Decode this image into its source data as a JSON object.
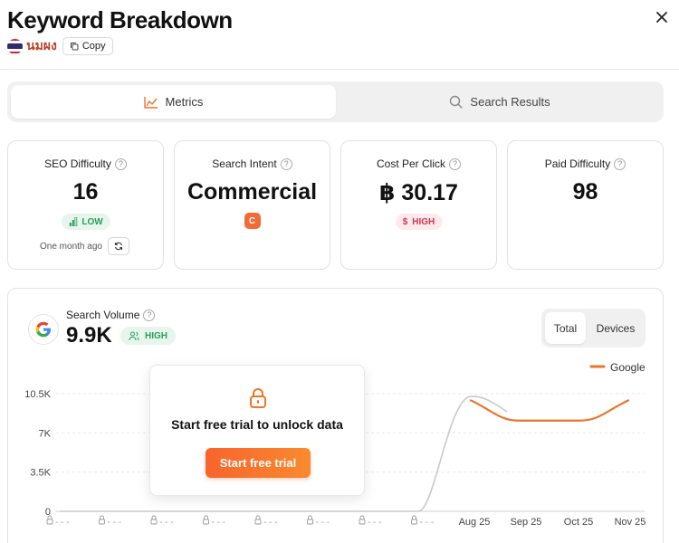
{
  "header": {
    "title": "Keyword Breakdown",
    "keyword": "นมผง",
    "copy_label": "Copy",
    "flag_icon": "thailand-flag-icon",
    "close_icon": "close-icon"
  },
  "tabs": [
    {
      "label": "Metrics",
      "icon": "chart-icon",
      "active": true
    },
    {
      "label": "Search Results",
      "icon": "search-icon",
      "active": false
    }
  ],
  "metrics": {
    "seo_difficulty": {
      "label": "SEO Difficulty",
      "value": "16",
      "badge": "LOW",
      "updated": "One month ago"
    },
    "search_intent": {
      "label": "Search Intent",
      "value": "Commercial",
      "chip": "C"
    },
    "cpc": {
      "label": "Cost Per Click",
      "value": "฿ 30.17",
      "badge": "HIGH"
    },
    "paid_difficulty": {
      "label": "Paid Difficulty",
      "value": "98"
    }
  },
  "search_volume": {
    "label": "Search Volume",
    "value": "9.9K",
    "badge": "HIGH",
    "toggle": {
      "total": "Total",
      "devices": "Devices",
      "selected": "Total"
    }
  },
  "unlock": {
    "text": "Start free trial to unlock data",
    "button": "Start free trial"
  },
  "colors": {
    "accent": "#f26a3a",
    "google_line": "#e8762c",
    "gray_line": "#c8c8c8",
    "low_green": "#2e9b5c",
    "high_red": "#d0384f"
  },
  "chart_data": {
    "type": "line",
    "legend": [
      "Google"
    ],
    "y_ticks": [
      "0",
      "3.5K",
      "7K",
      "10.5K"
    ],
    "ylim": [
      0,
      10500
    ],
    "x_labels": [
      "🔒 - - -",
      "🔒 - - -",
      "🔒 - - -",
      "🔒 - - -",
      "🔒 - - -",
      "🔒 - - -",
      "🔒 - - -",
      "🔒 - - -",
      "Aug 25",
      "Sep 25",
      "Oct 25",
      "Nov 25"
    ],
    "series": [
      {
        "name": "Google",
        "values": [
          null,
          null,
          null,
          null,
          null,
          null,
          null,
          null,
          9900,
          8100,
          8100,
          9900
        ]
      }
    ]
  }
}
